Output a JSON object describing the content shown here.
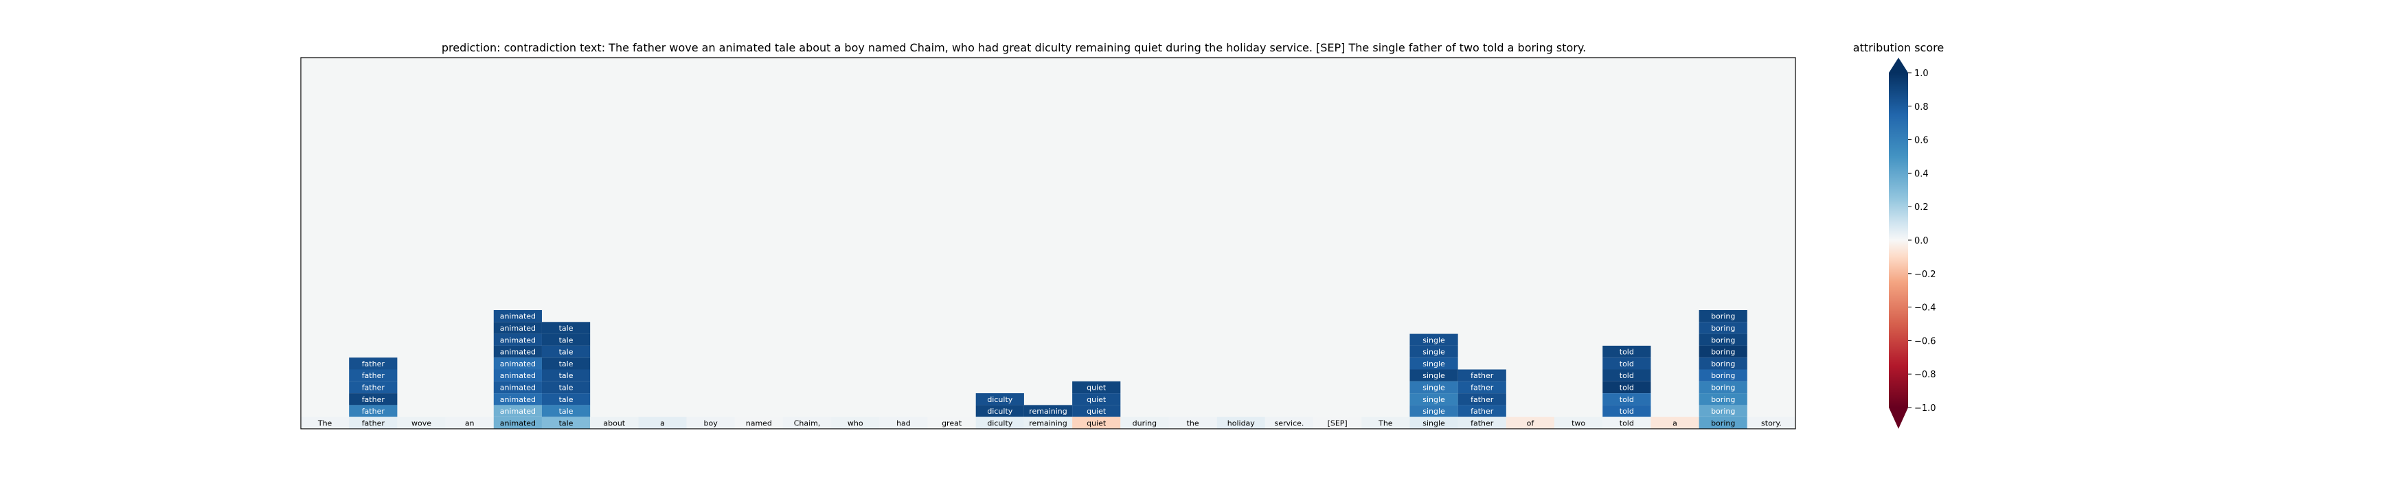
{
  "title_text": "prediction:  contradiction     text:  The father wove an animated tale about a boy named Chaim, who had great diculty remaining quiet during the holiday service. [SEP] The single father of two told a boring story.",
  "colorbar": {
    "label": "attribution score",
    "ticks": [
      "1.0",
      "0.8",
      "0.6",
      "0.4",
      "0.2",
      "0.0",
      "−0.2",
      "−0.4",
      "−0.6",
      "−0.8",
      "−1.0"
    ],
    "tick_values": [
      1.0,
      0.8,
      0.6,
      0.4,
      0.2,
      0.0,
      -0.2,
      -0.4,
      -0.6,
      -0.8,
      -1.0
    ],
    "colormap": "RdBu",
    "extend": "both"
  },
  "colors": {
    "plot_background": "#f4f6f6",
    "cell_text_on_dark": "#ffffff",
    "cell_text_on_light": "#000000"
  },
  "chart_data": {
    "type": "heatmap",
    "tokens": [
      "The",
      "father",
      "wove",
      "an",
      "animated",
      "tale",
      "about",
      "a",
      "boy",
      "named",
      "Chaim,",
      "who",
      "had",
      "great",
      "diculty",
      "remaining",
      "quiet",
      "during",
      "the",
      "holiday",
      "service.",
      "[SEP]",
      "The",
      "single",
      "father",
      "of",
      "two",
      "told",
      "a",
      "boring",
      "story."
    ],
    "base_row_scores": [
      0.02,
      0.05,
      0.03,
      0.02,
      0.35,
      0.3,
      0.03,
      0.05,
      0.02,
      0.01,
      0.02,
      0.03,
      0.02,
      0.01,
      0.05,
      0.04,
      -0.12,
      0.03,
      0.02,
      0.05,
      0.02,
      0.01,
      0.03,
      0.06,
      0.05,
      -0.05,
      0.03,
      0.02,
      -0.06,
      0.42,
      0.02
    ],
    "stacked_columns": [
      {
        "token": "father",
        "scores": [
          0.85,
          0.8,
          0.8,
          0.9,
          0.6
        ]
      },
      {
        "token": "animated",
        "scores": [
          0.85,
          0.9,
          0.85,
          0.9,
          0.7,
          0.75,
          0.8,
          0.7,
          0.35
        ]
      },
      {
        "token": "tale",
        "scores": [
          0.9,
          0.9,
          0.85,
          0.9,
          0.85,
          0.85,
          0.8,
          0.6
        ]
      },
      {
        "token": "diculty",
        "scores": [
          0.85,
          0.9
        ]
      },
      {
        "token": "remaining",
        "scores": [
          0.9
        ]
      },
      {
        "token": "quiet",
        "scores": [
          0.9,
          0.85,
          0.85
        ]
      },
      {
        "token": "single",
        "scores": [
          0.85,
          0.85,
          0.8,
          0.9,
          0.65,
          0.6,
          0.65
        ]
      },
      {
        "token": "father",
        "scores": [
          0.85,
          0.8,
          0.85,
          0.8
        ]
      },
      {
        "token": "told",
        "scores": [
          0.9,
          0.85,
          0.9,
          0.95,
          0.7,
          0.75
        ]
      },
      {
        "token": "boring",
        "scores": [
          0.9,
          0.85,
          0.9,
          0.95,
          0.85,
          0.75,
          0.6,
          0.55,
          0.4
        ]
      }
    ],
    "stacked_column_token_index": [
      1,
      4,
      5,
      14,
      15,
      16,
      23,
      24,
      27,
      29
    ],
    "vmin": -1.0,
    "vmax": 1.0,
    "grid": false,
    "legend": "colorbar-right"
  }
}
